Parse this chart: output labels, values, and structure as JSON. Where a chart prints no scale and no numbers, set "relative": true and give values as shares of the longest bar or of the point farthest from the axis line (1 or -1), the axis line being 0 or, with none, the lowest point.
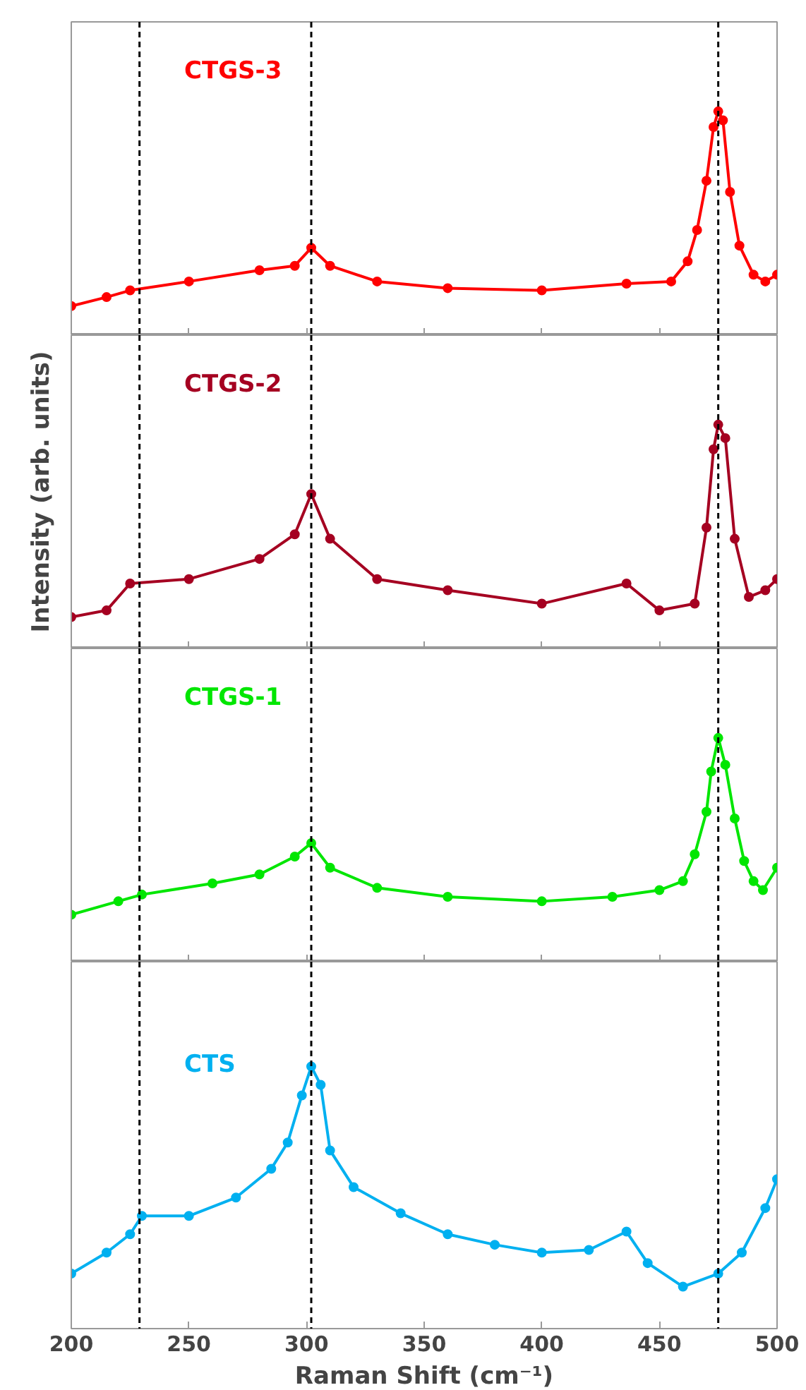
{
  "chart_data": [
    {
      "type": "line",
      "relative": true,
      "marker": "circle",
      "xlim": [
        200,
        500
      ],
      "xticks": [
        200,
        250,
        300,
        350,
        400,
        450,
        500
      ],
      "tick_labels": false,
      "grid": false,
      "series": [
        {
          "name": "CTGS-3",
          "color": "#ff0000",
          "x": [
            200,
            215,
            225,
            250,
            280,
            295,
            302,
            310,
            330,
            360,
            400,
            436,
            455,
            462,
            466,
            470,
            473,
            475,
            477,
            480,
            484,
            490,
            495,
            500
          ],
          "values": [
            0.13,
            0.17,
            0.2,
            0.24,
            0.29,
            0.31,
            0.39,
            0.31,
            0.24,
            0.21,
            0.2,
            0.23,
            0.24,
            0.33,
            0.47,
            0.69,
            0.93,
            1,
            0.96,
            0.64,
            0.4,
            0.27,
            0.24,
            0.27
          ]
        }
      ],
      "ref_lines": [
        {
          "axis": "x",
          "value": 229,
          "line_style": "dashed",
          "color": "#000000"
        },
        {
          "axis": "x",
          "value": 302,
          "line_style": "dashed",
          "color": "#000000"
        },
        {
          "axis": "x",
          "value": 475,
          "line_style": "dashed",
          "color": "#000000"
        }
      ]
    },
    {
      "type": "line",
      "relative": true,
      "marker": "circle",
      "xlim": [
        200,
        500
      ],
      "xticks": [
        200,
        250,
        300,
        350,
        400,
        450,
        500
      ],
      "tick_labels": false,
      "grid": false,
      "ylabel": "Intensity (arb. units)",
      "series": [
        {
          "name": "CTGS-2",
          "color": "#a50021",
          "x": [
            200,
            215,
            225,
            250,
            280,
            295,
            302,
            310,
            330,
            360,
            400,
            436,
            450,
            465,
            470,
            473,
            475,
            478,
            482,
            488,
            495,
            500
          ],
          "values": [
            0.14,
            0.17,
            0.29,
            0.31,
            0.4,
            0.51,
            0.69,
            0.49,
            0.31,
            0.26,
            0.2,
            0.29,
            0.17,
            0.2,
            0.54,
            0.89,
            1,
            0.94,
            0.49,
            0.23,
            0.26,
            0.31
          ]
        }
      ],
      "ref_lines": [
        {
          "axis": "x",
          "value": 229,
          "line_style": "dashed",
          "color": "#000000"
        },
        {
          "axis": "x",
          "value": 302,
          "line_style": "dashed",
          "color": "#000000"
        },
        {
          "axis": "x",
          "value": 475,
          "line_style": "dashed",
          "color": "#000000"
        }
      ]
    },
    {
      "type": "line",
      "relative": true,
      "marker": "circle",
      "xlim": [
        200,
        500
      ],
      "xticks": [
        200,
        250,
        300,
        350,
        400,
        450,
        500
      ],
      "tick_labels": false,
      "grid": false,
      "series": [
        {
          "name": "CTGS-1",
          "color": "#00e600",
          "x": [
            200,
            220,
            230,
            260,
            280,
            295,
            302,
            310,
            330,
            360,
            400,
            430,
            450,
            460,
            465,
            470,
            472,
            475,
            478,
            482,
            486,
            490,
            494,
            500
          ],
          "values": [
            0.21,
            0.27,
            0.3,
            0.35,
            0.39,
            0.47,
            0.53,
            0.42,
            0.33,
            0.29,
            0.27,
            0.29,
            0.32,
            0.36,
            0.48,
            0.67,
            0.85,
            1,
            0.88,
            0.64,
            0.45,
            0.36,
            0.32,
            0.42
          ]
        }
      ],
      "ref_lines": [
        {
          "axis": "x",
          "value": 229,
          "line_style": "dashed",
          "color": "#000000"
        },
        {
          "axis": "x",
          "value": 302,
          "line_style": "dashed",
          "color": "#000000"
        },
        {
          "axis": "x",
          "value": 475,
          "line_style": "dashed",
          "color": "#000000"
        }
      ]
    },
    {
      "type": "line",
      "relative": true,
      "marker": "circle",
      "xlim": [
        200,
        500
      ],
      "xticks": [
        200,
        250,
        300,
        350,
        400,
        450,
        500
      ],
      "tick_labels": "x",
      "grid": false,
      "xlabel": "Raman Shift (cm⁻¹)",
      "series": [
        {
          "name": "CTS",
          "color": "#00b0f0",
          "x": [
            200,
            215,
            225,
            230,
            250,
            270,
            285,
            292,
            298,
            302,
            306,
            310,
            320,
            340,
            360,
            380,
            400,
            420,
            436,
            445,
            460,
            475,
            485,
            495,
            500
          ],
          "values": [
            0.21,
            0.29,
            0.36,
            0.43,
            0.43,
            0.5,
            0.61,
            0.71,
            0.89,
            1,
            0.93,
            0.68,
            0.54,
            0.44,
            0.36,
            0.32,
            0.29,
            0.3,
            0.37,
            0.25,
            0.16,
            0.21,
            0.29,
            0.46,
            0.57
          ]
        }
      ],
      "ref_lines": [
        {
          "axis": "x",
          "value": 229,
          "line_style": "dashed",
          "color": "#000000"
        },
        {
          "axis": "x",
          "value": 302,
          "line_style": "dashed",
          "color": "#000000"
        },
        {
          "axis": "x",
          "value": 475,
          "line_style": "dashed",
          "color": "#000000"
        }
      ]
    }
  ]
}
